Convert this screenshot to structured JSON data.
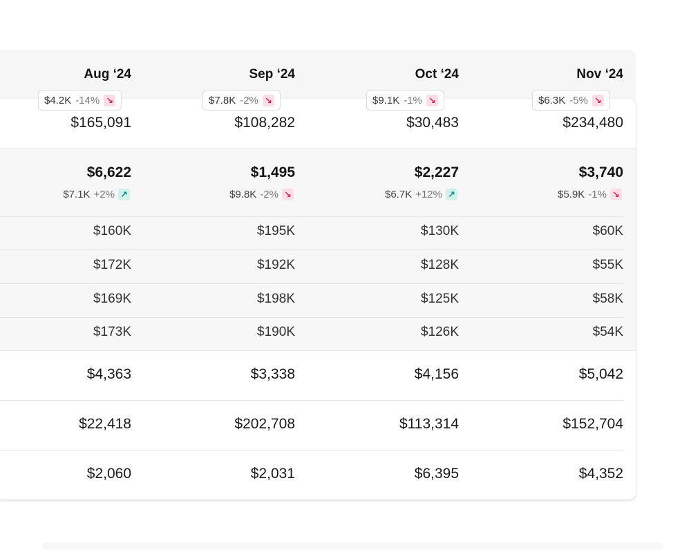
{
  "columns": [
    {
      "month": "Aug ‘24",
      "badge_amount": "$4.2K",
      "badge_change": "-14%",
      "badge_trend": "down",
      "row1": "$165,091",
      "highlight": "$6,622",
      "highlight_sub_amount": "$7.1K",
      "highlight_sub_change": "+2%",
      "highlight_trend": "up",
      "sub_rows": [
        "$160K",
        "$172K",
        "$169K",
        "$173K"
      ],
      "bottom_rows": [
        "$4,363",
        "$22,418",
        "$2,060"
      ]
    },
    {
      "month": "Sep ‘24",
      "badge_amount": "$7.8K",
      "badge_change": "-2%",
      "badge_trend": "down",
      "row1": "$108,282",
      "highlight": "$1,495",
      "highlight_sub_amount": "$9.8K",
      "highlight_sub_change": "-2%",
      "highlight_trend": "down",
      "sub_rows": [
        "$195K",
        "$192K",
        "$198K",
        "$190K"
      ],
      "bottom_rows": [
        "$3,338",
        "$202,708",
        "$2,031"
      ]
    },
    {
      "month": "Oct ‘24",
      "badge_amount": "$9.1K",
      "badge_change": "-1%",
      "badge_trend": "down",
      "row1": "$30,483",
      "highlight": "$2,227",
      "highlight_sub_amount": "$6.7K",
      "highlight_sub_change": "+12%",
      "highlight_trend": "up",
      "sub_rows": [
        "$130K",
        "$128K",
        "$125K",
        "$126K"
      ],
      "bottom_rows": [
        "$4,156",
        "$113,314",
        "$6,395"
      ]
    },
    {
      "month": "Nov ‘24",
      "badge_amount": "$6.3K",
      "badge_change": "-5%",
      "badge_trend": "down",
      "row1": "$234,480",
      "highlight": "$3,740",
      "highlight_sub_amount": "$5.9K",
      "highlight_sub_change": "-1%",
      "highlight_trend": "down",
      "sub_rows": [
        "$60K",
        "$55K",
        "$58K",
        "$54K"
      ],
      "bottom_rows": [
        "$5,042",
        "$152,704",
        "$4,352"
      ]
    }
  ],
  "icons": {
    "down": "arrow-down-right-icon",
    "up": "arrow-up-right-icon"
  },
  "colors": {
    "down_fg": "#d6245a",
    "down_bg": "#fbdde6",
    "up_fg": "#12897a",
    "up_bg": "#d3efeb"
  }
}
